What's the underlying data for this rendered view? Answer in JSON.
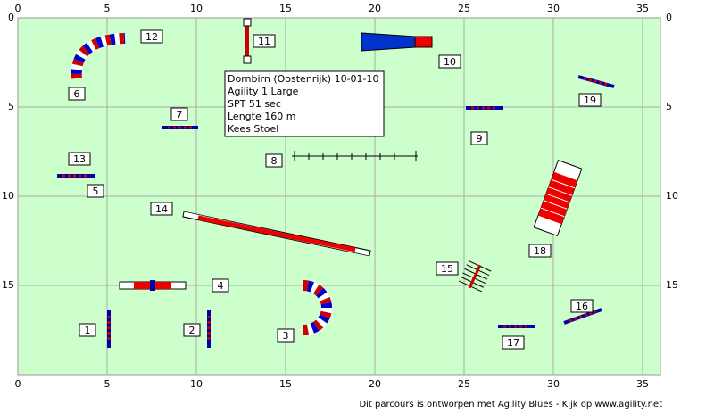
{
  "axes": {
    "x_ticks": [
      0,
      5,
      10,
      15,
      20,
      25,
      30,
      35
    ],
    "y_ticks": [
      0,
      5,
      10,
      15
    ]
  },
  "info": {
    "lines": [
      "Dornbirn (Oostenrijk) 10-01-10",
      "Agility 1 Large",
      "SPT 51 sec",
      "Lengte 160 m",
      "Kees Stoel"
    ]
  },
  "obstacles": {
    "labels": [
      "1",
      "2",
      "3",
      "4",
      "5",
      "6",
      "7",
      "8",
      "9",
      "10",
      "11",
      "12",
      "13",
      "14",
      "15",
      "16",
      "17",
      "18",
      "19"
    ]
  },
  "footer": "Dit parcours is ontworpen met Agility Blues - Kijk op www.agility.net"
}
